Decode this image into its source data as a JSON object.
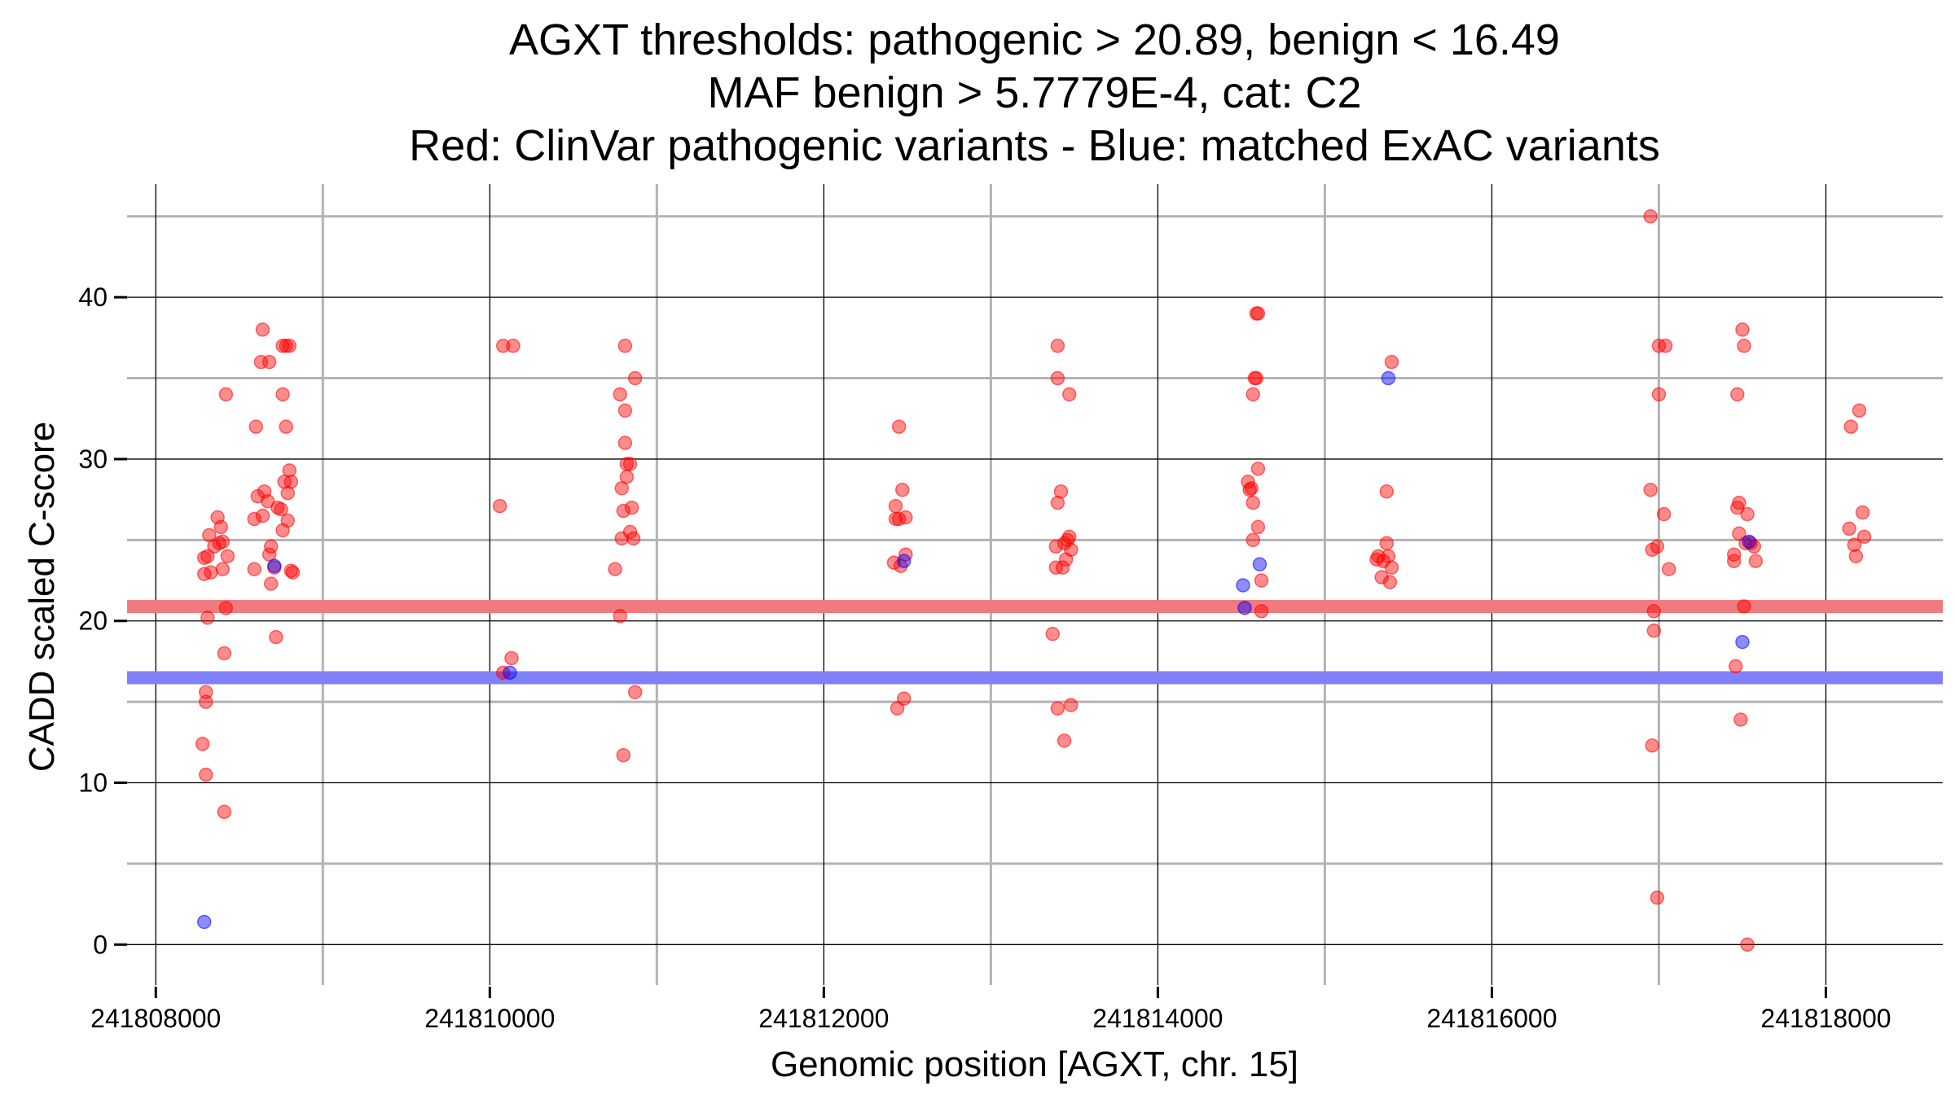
{
  "chart_data": {
    "type": "scatter",
    "title_lines": [
      "AGXT thresholds: pathogenic > 20.89, benign < 16.49",
      "MAF benign > 5.7779E-4, cat: C2",
      "Red: ClinVar pathogenic variants - Blue: matched ExAC variants"
    ],
    "xlabel": "Genomic position [AGXT, chr. 15]",
    "ylabel": "CADD scaled C-score",
    "xlim": [
      241807750,
      241818700
    ],
    "ylim": [
      -2.5,
      47
    ],
    "x_major_ticks": [
      241808000,
      241810000,
      241812000,
      241814000,
      241816000,
      241818000
    ],
    "x_tick_labels": [
      "241808000",
      "241810000",
      "241812000",
      "241814000",
      "241816000",
      "241818000"
    ],
    "x_minor_grid": [
      241809000,
      241811000,
      241813000,
      241815000,
      241817000
    ],
    "y_major_ticks": [
      0,
      10,
      20,
      30,
      40
    ],
    "y_tick_labels": [
      "0",
      "10",
      "20",
      "30",
      "40"
    ],
    "y_minor_grid": [
      5,
      15,
      25,
      35,
      45
    ],
    "thresholds": [
      {
        "name": "pathogenic",
        "value": 20.89,
        "color": "#f07b7e"
      },
      {
        "name": "benign",
        "value": 16.49,
        "color": "#8080f8"
      }
    ],
    "colors": {
      "pathogenic": "#ff0000",
      "benign": "#0000ff",
      "major_grid": "#000000",
      "minor_grid": "#b3b3b3"
    },
    "series": [
      {
        "name": "ClinVar pathogenic variants",
        "color": "#ff0000",
        "points": [
          [
            241808290,
            23.9
          ],
          [
            241808290,
            22.9
          ],
          [
            241808300,
            15.6
          ],
          [
            241808300,
            15.0
          ],
          [
            241808280,
            12.4
          ],
          [
            241808300,
            10.5
          ],
          [
            241808310,
            20.2
          ],
          [
            241808310,
            24.0
          ],
          [
            241808320,
            25.3
          ],
          [
            241808330,
            23.0
          ],
          [
            241808350,
            24.6
          ],
          [
            241808370,
            26.4
          ],
          [
            241808380,
            24.8
          ],
          [
            241808390,
            25.8
          ],
          [
            241808400,
            24.9
          ],
          [
            241808400,
            23.2
          ],
          [
            241808410,
            8.2
          ],
          [
            241808410,
            18.0
          ],
          [
            241808420,
            20.8
          ],
          [
            241808420,
            34.0
          ],
          [
            241808430,
            24.0
          ],
          [
            241808590,
            23.2
          ],
          [
            241808590,
            26.3
          ],
          [
            241808600,
            32.0
          ],
          [
            241808610,
            27.7
          ],
          [
            241808630,
            36.0
          ],
          [
            241808640,
            38.0
          ],
          [
            241808640,
            26.5
          ],
          [
            241808650,
            28.0
          ],
          [
            241808670,
            27.4
          ],
          [
            241808680,
            36.0
          ],
          [
            241808680,
            24.1
          ],
          [
            241808690,
            24.6
          ],
          [
            241808690,
            22.3
          ],
          [
            241808710,
            23.3
          ],
          [
            241808720,
            19.0
          ],
          [
            241808730,
            27.0
          ],
          [
            241808750,
            26.9
          ],
          [
            241808760,
            37.0
          ],
          [
            241808760,
            34.0
          ],
          [
            241808760,
            25.6
          ],
          [
            241808770,
            28.6
          ],
          [
            241808780,
            32.0
          ],
          [
            241808780,
            37.0
          ],
          [
            241808790,
            27.9
          ],
          [
            241808790,
            26.2
          ],
          [
            241808800,
            37.0
          ],
          [
            241808800,
            29.3
          ],
          [
            241808810,
            28.6
          ],
          [
            241808810,
            23.1
          ],
          [
            241808820,
            23.0
          ],
          [
            241810060,
            27.1
          ],
          [
            241810080,
            37.0
          ],
          [
            241810080,
            16.8
          ],
          [
            241810130,
            17.7
          ],
          [
            241810140,
            37.0
          ],
          [
            241810750,
            23.2
          ],
          [
            241810780,
            20.3
          ],
          [
            241810780,
            34.0
          ],
          [
            241810790,
            28.2
          ],
          [
            241810790,
            25.1
          ],
          [
            241810800,
            26.8
          ],
          [
            241810800,
            11.7
          ],
          [
            241810810,
            31.0
          ],
          [
            241810810,
            37.0
          ],
          [
            241810810,
            33.0
          ],
          [
            241810820,
            28.9
          ],
          [
            241810820,
            29.7
          ],
          [
            241810840,
            29.7
          ],
          [
            241810840,
            25.5
          ],
          [
            241810850,
            27.0
          ],
          [
            241810860,
            25.1
          ],
          [
            241810870,
            35.0
          ],
          [
            241810870,
            15.6
          ],
          [
            241812420,
            23.6
          ],
          [
            241812430,
            26.3
          ],
          [
            241812430,
            27.1
          ],
          [
            241812440,
            14.6
          ],
          [
            241812450,
            32.0
          ],
          [
            241812450,
            26.3
          ],
          [
            241812460,
            23.4
          ],
          [
            241812470,
            28.1
          ],
          [
            241812480,
            15.2
          ],
          [
            241812490,
            26.4
          ],
          [
            241812490,
            24.1
          ],
          [
            241813370,
            19.2
          ],
          [
            241813390,
            23.3
          ],
          [
            241813390,
            24.6
          ],
          [
            241813400,
            37.0
          ],
          [
            241813400,
            35.0
          ],
          [
            241813400,
            27.3
          ],
          [
            241813400,
            14.6
          ],
          [
            241813420,
            28.0
          ],
          [
            241813430,
            23.3
          ],
          [
            241813440,
            24.8
          ],
          [
            241813440,
            12.6
          ],
          [
            241813450,
            23.8
          ],
          [
            241813460,
            25.0
          ],
          [
            241813470,
            34.0
          ],
          [
            241813470,
            25.2
          ],
          [
            241813480,
            14.8
          ],
          [
            241813480,
            24.4
          ],
          [
            241814540,
            28.6
          ],
          [
            241814550,
            28.1
          ],
          [
            241814560,
            28.2
          ],
          [
            241814570,
            25.0
          ],
          [
            241814570,
            34.0
          ],
          [
            241814570,
            27.3
          ],
          [
            241814580,
            35.0
          ],
          [
            241814590,
            35.0
          ],
          [
            241814590,
            39.0
          ],
          [
            241814600,
            29.4
          ],
          [
            241814600,
            25.8
          ],
          [
            241814600,
            39.0
          ],
          [
            241814620,
            22.5
          ],
          [
            241814620,
            20.6
          ],
          [
            241815310,
            23.8
          ],
          [
            241815320,
            24.0
          ],
          [
            241815340,
            22.7
          ],
          [
            241815350,
            23.7
          ],
          [
            241815370,
            24.8
          ],
          [
            241815370,
            28.0
          ],
          [
            241815380,
            24.0
          ],
          [
            241815390,
            22.4
          ],
          [
            241815400,
            23.3
          ],
          [
            241815400,
            36.0
          ],
          [
            241816950,
            45.0
          ],
          [
            241816950,
            28.1
          ],
          [
            241816960,
            24.4
          ],
          [
            241816960,
            12.3
          ],
          [
            241816970,
            19.4
          ],
          [
            241816970,
            20.6
          ],
          [
            241816990,
            2.9
          ],
          [
            241816990,
            24.6
          ],
          [
            241817000,
            34.0
          ],
          [
            241817000,
            37.0
          ],
          [
            241817030,
            26.6
          ],
          [
            241817040,
            37.0
          ],
          [
            241817060,
            23.2
          ],
          [
            241817450,
            24.1
          ],
          [
            241817450,
            23.7
          ],
          [
            241817460,
            17.2
          ],
          [
            241817470,
            34.0
          ],
          [
            241817470,
            27.0
          ],
          [
            241817480,
            25.4
          ],
          [
            241817480,
            27.3
          ],
          [
            241817490,
            13.9
          ],
          [
            241817500,
            38.0
          ],
          [
            241817510,
            37.0
          ],
          [
            241817510,
            20.9
          ],
          [
            241817520,
            24.8
          ],
          [
            241817530,
            26.6
          ],
          [
            241817530,
            0.0
          ],
          [
            241817550,
            24.8
          ],
          [
            241817570,
            24.6
          ],
          [
            241817580,
            23.7
          ],
          [
            241818140,
            25.7
          ],
          [
            241818150,
            32.0
          ],
          [
            241818170,
            24.7
          ],
          [
            241818180,
            24.0
          ],
          [
            241818200,
            33.0
          ],
          [
            241818220,
            26.7
          ],
          [
            241818230,
            25.2
          ]
        ]
      },
      {
        "name": "matched ExAC variants",
        "color": "#0000ff",
        "points": [
          [
            241808290,
            1.4
          ],
          [
            241808710,
            23.4
          ],
          [
            241810120,
            16.8
          ],
          [
            241812480,
            23.7
          ],
          [
            241814510,
            22.2
          ],
          [
            241814520,
            20.8
          ],
          [
            241814610,
            23.5
          ],
          [
            241815380,
            35.0
          ],
          [
            241817500,
            18.7
          ],
          [
            241817540,
            24.9
          ]
        ]
      }
    ]
  }
}
